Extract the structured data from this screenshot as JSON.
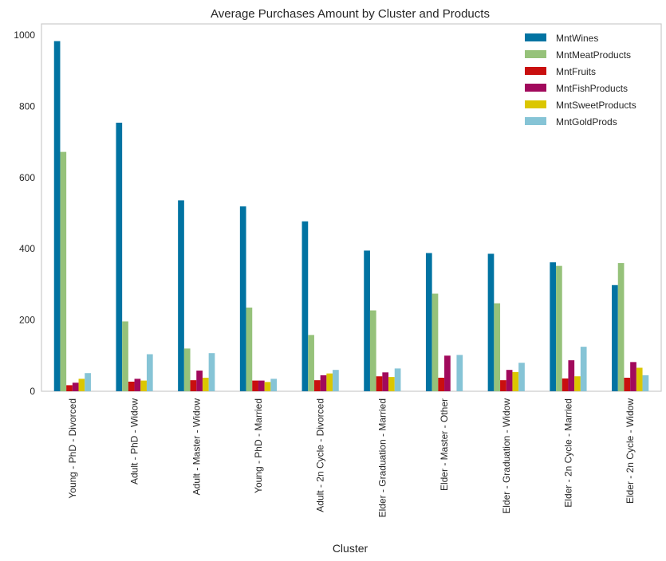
{
  "chart_data": {
    "type": "bar",
    "title": "Average Purchases Amount by Cluster and Products",
    "xlabel": "Cluster",
    "ylabel": "",
    "ylim": [
      0,
      1000
    ],
    "yticks": [
      0,
      200,
      400,
      600,
      800,
      1000
    ],
    "grid": false,
    "legend_position": "top-right",
    "categories": [
      "Young - PhD - Divorced",
      "Adult - PhD - Widow",
      "Adult - Master - Widow",
      "Young - PhD - Married",
      "Adult - 2n Cycle - Divorced",
      "Elder - Graduation - Married",
      "Elder - Master - Other",
      "Elder - Graduation - Widow",
      "Elder - 2n Cycle - Married",
      "Elder - 2n Cycle - Widow"
    ],
    "series": [
      {
        "name": "MntWines",
        "color": "#0173a2",
        "values": [
          983,
          754,
          536,
          519,
          477,
          395,
          388,
          386,
          362,
          298
        ]
      },
      {
        "name": "MntMeatProducts",
        "color": "#96c27a",
        "values": [
          672,
          196,
          120,
          235,
          158,
          227,
          274,
          247,
          352,
          360
        ]
      },
      {
        "name": "MntFruits",
        "color": "#c90f0f",
        "values": [
          17,
          27,
          31,
          30,
          31,
          42,
          38,
          31,
          36,
          38
        ]
      },
      {
        "name": "MntFishProducts",
        "color": "#a1095c",
        "values": [
          24,
          35,
          58,
          30,
          45,
          53,
          100,
          60,
          87,
          82
        ]
      },
      {
        "name": "MntSweetProducts",
        "color": "#dbc600",
        "values": [
          35,
          30,
          38,
          26,
          50,
          40,
          0,
          54,
          42,
          66
        ]
      },
      {
        "name": "MntGoldProds",
        "color": "#86c4d6",
        "values": [
          51,
          104,
          107,
          35,
          60,
          64,
          102,
          80,
          125,
          45
        ]
      }
    ]
  }
}
